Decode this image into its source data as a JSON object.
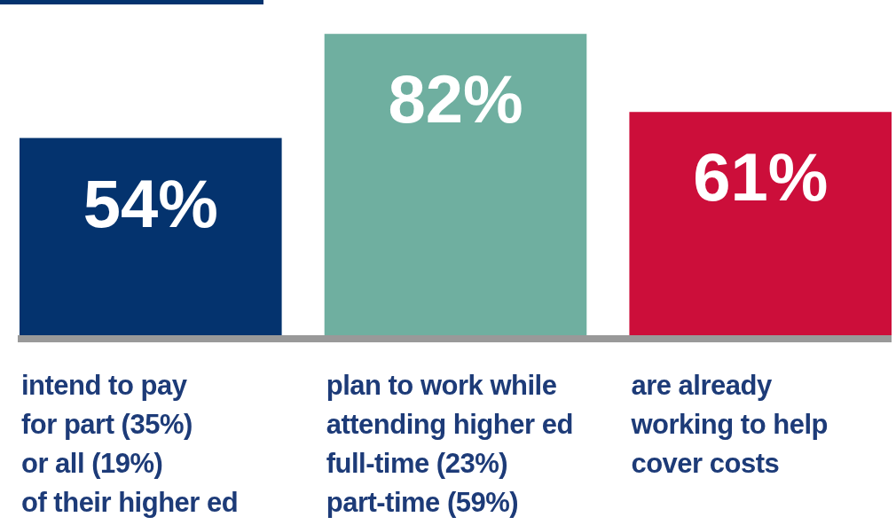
{
  "chart_data": {
    "type": "bar",
    "categories": [
      "intend to pay\nfor part (35%)\nor all (19%)\nof their higher ed",
      "plan to work while\nattending higher ed\nfull-time (23%)\npart-time (59%)",
      "are already\nworking to help\ncover costs"
    ],
    "values": [
      54,
      82,
      61
    ],
    "value_labels": [
      "54%",
      "82%",
      "61%"
    ],
    "colors": [
      "#04336e",
      "#6fafa0",
      "#cc0e3a"
    ]
  }
}
